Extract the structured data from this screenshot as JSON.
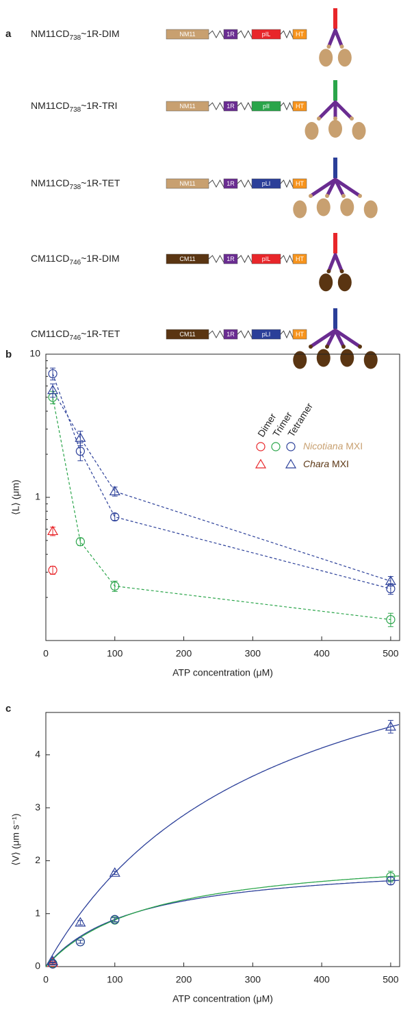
{
  "panel_labels": [
    "a",
    "b",
    "c"
  ],
  "constructs": [
    {
      "name": "NM11CD",
      "sub": "738",
      "suffix": "~1R-DIM",
      "domains": [
        {
          "label": "NM11",
          "color": "#c8a070"
        },
        {
          "label": "1R",
          "color": "#6a2c91"
        },
        {
          "label": "pIL",
          "color": "#e8262a"
        },
        {
          "label": "HT",
          "color": "#f7941d"
        }
      ]
    },
    {
      "name": "NM11CD",
      "sub": "738",
      "suffix": "~1R-TRI",
      "domains": [
        {
          "label": "NM11",
          "color": "#c8a070"
        },
        {
          "label": "1R",
          "color": "#6a2c91"
        },
        {
          "label": "pII",
          "color": "#2aa54a"
        },
        {
          "label": "HT",
          "color": "#f7941d"
        }
      ]
    },
    {
      "name": "NM11CD",
      "sub": "738",
      "suffix": "~1R-TET",
      "domains": [
        {
          "label": "NM11",
          "color": "#c8a070"
        },
        {
          "label": "1R",
          "color": "#6a2c91"
        },
        {
          "label": "pLI",
          "color": "#2b3f99"
        },
        {
          "label": "HT",
          "color": "#f7941d"
        }
      ]
    },
    {
      "name": "CM11CD",
      "sub": "746",
      "suffix": "~1R-DIM",
      "domains": [
        {
          "label": "CM11",
          "color": "#5a3512"
        },
        {
          "label": "1R",
          "color": "#6a2c91"
        },
        {
          "label": "pIL",
          "color": "#e8262a"
        },
        {
          "label": "HT",
          "color": "#f7941d"
        }
      ]
    },
    {
      "name": "CM11CD",
      "sub": "746",
      "suffix": "~1R-TET",
      "domains": [
        {
          "label": "CM11",
          "color": "#5a3512"
        },
        {
          "label": "1R",
          "color": "#6a2c91"
        },
        {
          "label": "pLI",
          "color": "#2b3f99"
        },
        {
          "label": "HT",
          "color": "#f7941d"
        }
      ]
    }
  ],
  "chart_data": [
    {
      "type": "scatter",
      "log_y": true,
      "xlim": [
        0,
        513
      ],
      "ylim": [
        0.1,
        10
      ],
      "xticks": [
        0,
        100,
        200,
        300,
        400,
        500
      ],
      "yticks": [
        1,
        10
      ],
      "minor_yticks": [
        0.2,
        0.3,
        0.4,
        0.5,
        0.6,
        0.7,
        0.8,
        0.9,
        2,
        3,
        4,
        5,
        6,
        7,
        8,
        9
      ],
      "xlabel": "ATP concentration (μM)",
      "ylabel": "⟨L⟩ (μm)",
      "legend": {
        "columns": [
          {
            "label": "Dimer",
            "color": "#e8262a"
          },
          {
            "label": "Trimer",
            "color": "#2aa54a"
          },
          {
            "label": "Tetramer",
            "color": "#2b3f99"
          }
        ],
        "rows": [
          {
            "italic": "Nicotiana",
            "text": " MXI",
            "color": "#c8a070",
            "marker": "circle",
            "columns": [
              0,
              1,
              2
            ]
          },
          {
            "italic": "Chara",
            "text": " MXI",
            "color": "#5a3512",
            "marker": "triangle",
            "columns": [
              0,
              2
            ]
          }
        ]
      },
      "series": [
        {
          "color": "#e8262a",
          "marker": "circle",
          "dashed": false,
          "x": [
            10
          ],
          "values": [
            0.31
          ],
          "errors": [
            0.02
          ]
        },
        {
          "color": "#e8262a",
          "marker": "triangle",
          "dashed": false,
          "x": [
            10
          ],
          "values": [
            0.58
          ],
          "errors": [
            0.04
          ]
        },
        {
          "color": "#2aa54a",
          "marker": "circle",
          "dashed": true,
          "x": [
            10,
            50,
            100,
            500
          ],
          "values": [
            5.0,
            0.49,
            0.24,
            0.14
          ],
          "errors": [
            0.5,
            0.03,
            0.02,
            0.015
          ]
        },
        {
          "color": "#2b3f99",
          "marker": "circle",
          "dashed": true,
          "x": [
            10,
            50,
            100,
            500
          ],
          "values": [
            7.3,
            2.1,
            0.73,
            0.23
          ],
          "errors": [
            0.7,
            0.3,
            0.04,
            0.02
          ]
        },
        {
          "color": "#2b3f99",
          "marker": "triangle",
          "dashed": true,
          "x": [
            10,
            50,
            100,
            500
          ],
          "values": [
            5.6,
            2.6,
            1.1,
            0.26
          ],
          "errors": [
            0.6,
            0.3,
            0.08,
            0.02
          ]
        }
      ]
    },
    {
      "type": "scatter",
      "log_y": false,
      "xlim": [
        0,
        513
      ],
      "ylim": [
        0,
        4.8
      ],
      "xticks": [
        0,
        100,
        200,
        300,
        400,
        500
      ],
      "yticks": [
        0,
        1,
        2,
        3,
        4
      ],
      "xlabel": "ATP concentration (μM)",
      "ylabel": "⟨V⟩ (μm s⁻¹)",
      "series": [
        {
          "color": "#e8262a",
          "marker": "circle",
          "x": [
            10
          ],
          "values": [
            0.05
          ],
          "errors": [
            0.02
          ]
        },
        {
          "color": "#e8262a",
          "marker": "triangle",
          "x": [
            10
          ],
          "values": [
            0.07
          ],
          "errors": [
            0.02
          ]
        },
        {
          "color": "#2aa54a",
          "marker": "circle",
          "x": [
            10,
            50,
            100,
            500
          ],
          "values": [
            0.06,
            0.47,
            0.88,
            1.7
          ],
          "errors": [
            0.02,
            0.03,
            0.04,
            0.1
          ]
        },
        {
          "color": "#2b3f99",
          "marker": "circle",
          "x": [
            10,
            50,
            100,
            500
          ],
          "values": [
            0.05,
            0.47,
            0.89,
            1.62
          ],
          "errors": [
            0.02,
            0.03,
            0.04,
            0.07
          ]
        },
        {
          "color": "#2b3f99",
          "marker": "triangle",
          "x": [
            10,
            50,
            100,
            500
          ],
          "values": [
            0.1,
            0.83,
            1.77,
            4.53
          ],
          "errors": [
            0.02,
            0.04,
            0.03,
            0.12
          ]
        }
      ],
      "fits": [
        {
          "color": "#2b3f99",
          "vmax": 7.42,
          "km": 319
        },
        {
          "color": "#2b3f99",
          "vmax": 2.04,
          "km": 129
        },
        {
          "color": "#2aa54a",
          "vmax": 2.22,
          "km": 152
        }
      ]
    }
  ]
}
